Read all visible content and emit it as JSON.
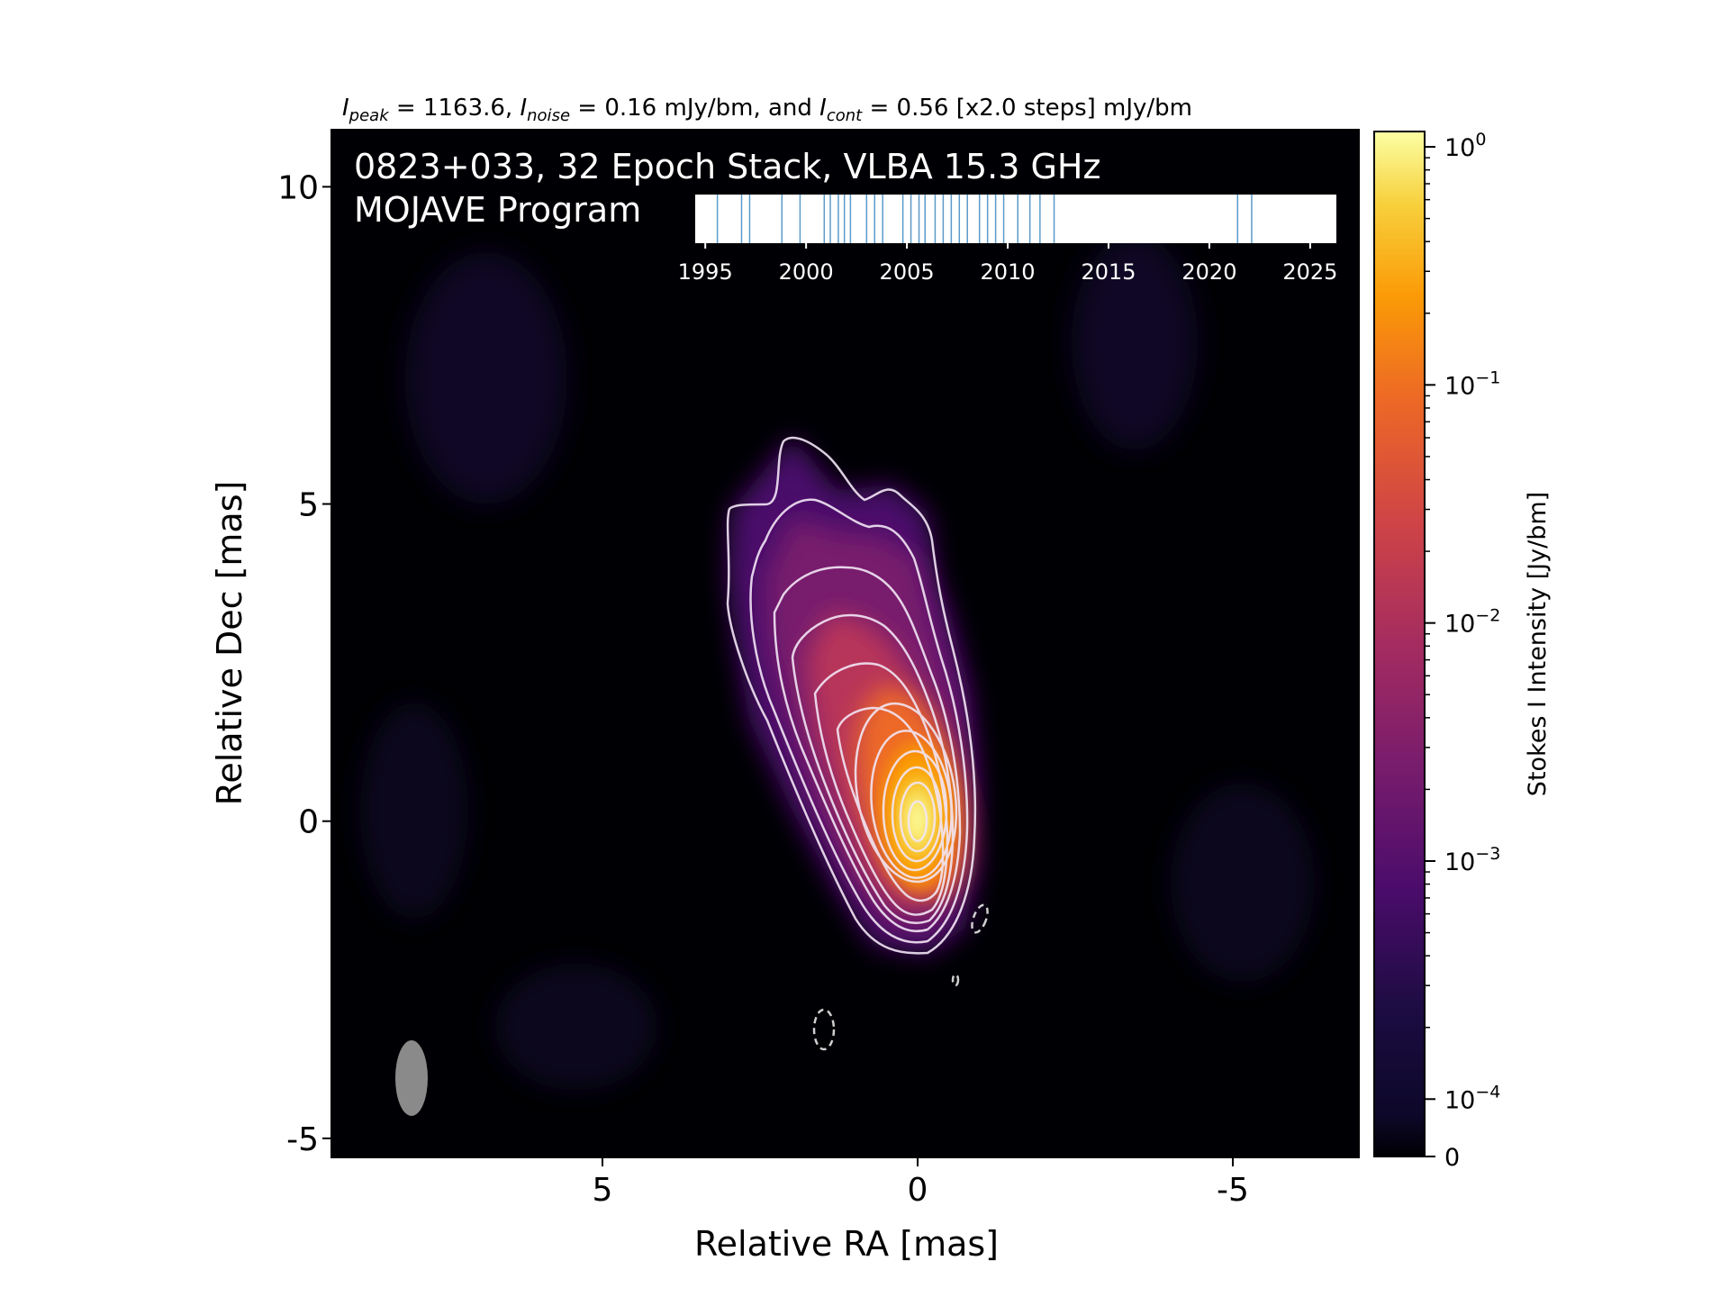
{
  "chart_data": {
    "type": "heatmap",
    "title": {
      "peak_label": "I",
      "peak_sub": "peak",
      "peak_value": " = 1163.6, ",
      "noise_label": "I",
      "noise_sub": "noise",
      "noise_value": " = 0.16 mJy/bm, and ",
      "cont_label": "I",
      "cont_sub": "cont",
      "cont_value": " = 0.56 [x2.0 steps] mJy/bm"
    },
    "annotation_line1": "0823+033, 32 Epoch Stack, VLBA 15.3 GHz",
    "annotation_line2": "MOJAVE Program",
    "xlabel": "Relative RA [mas]",
    "ylabel": "Relative Dec [mas]",
    "xlim": [
      9.3,
      -7.0
    ],
    "ylim": [
      -5.3,
      10.9
    ],
    "xticks": [
      {
        "value": 5,
        "label": "5"
      },
      {
        "value": 0,
        "label": "0"
      },
      {
        "value": -5,
        "label": "-5"
      }
    ],
    "yticks": [
      {
        "value": -5,
        "label": "-5"
      },
      {
        "value": 0,
        "label": "0"
      },
      {
        "value": 5,
        "label": "5"
      },
      {
        "value": 10,
        "label": "10"
      }
    ],
    "source": {
      "ra": 0.0,
      "dec": 0.0
    },
    "colorbar": {
      "label": "Stokes I Intensity [Jy/bm]",
      "scale": "log",
      "colormap": "inferno",
      "range": [
        0,
        1.16
      ],
      "ticks": [
        {
          "value": 1,
          "base": "10",
          "exp": "0"
        },
        {
          "value": 0.1,
          "base": "10",
          "exp": "−1"
        },
        {
          "value": 0.01,
          "base": "10",
          "exp": "−2"
        },
        {
          "value": 0.001,
          "base": "10",
          "exp": "−3"
        },
        {
          "value": 0.0001,
          "base": "10",
          "exp": "−4"
        },
        {
          "value": 0,
          "label": "0"
        }
      ]
    },
    "contours": {
      "color": "#f2e6f5",
      "levels_count": 12,
      "negative_dashed": true
    },
    "beam": {
      "color": "#8a8a8a"
    },
    "epoch_timeline": {
      "range": [
        1994.5,
        2026.3
      ],
      "tick_years": [
        1995,
        2000,
        2005,
        2010,
        2015,
        2020,
        2025
      ],
      "epochs": [
        1995.6,
        1996.8,
        1997.2,
        1998.8,
        1999.7,
        2000.9,
        2001.2,
        2001.6,
        2001.9,
        2002.2,
        2003.0,
        2003.4,
        2003.8,
        2004.8,
        2005.2,
        2005.6,
        2005.9,
        2006.4,
        2006.8,
        2007.2,
        2007.6,
        2008.0,
        2008.6,
        2009.0,
        2009.4,
        2009.8,
        2010.5,
        2011.1,
        2011.6,
        2012.3,
        2021.4,
        2022.1
      ],
      "line_color": "#5b9bc9"
    }
  }
}
